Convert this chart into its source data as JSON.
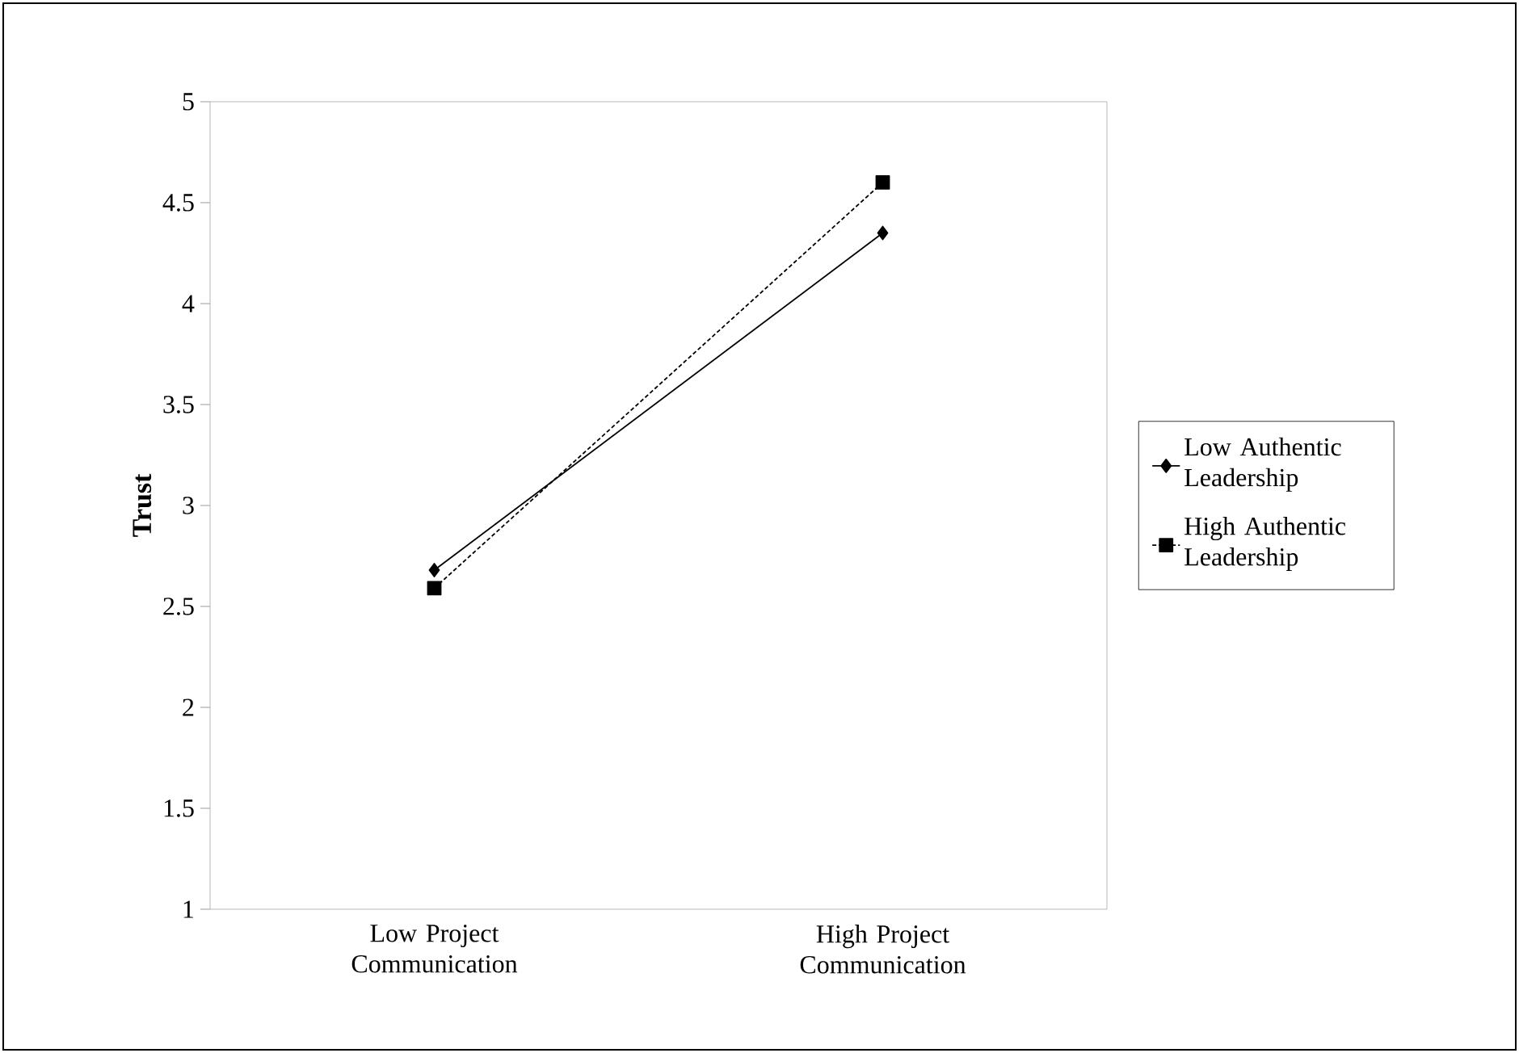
{
  "chart_data": {
    "type": "line",
    "ylabel": "Trust",
    "categories": [
      "Low Project Communication",
      "High Project Communication"
    ],
    "ylim": [
      1,
      5
    ],
    "yticks": [
      1,
      1.5,
      2,
      2.5,
      3,
      3.5,
      4,
      4.5,
      5
    ],
    "grid": false,
    "legend": "right",
    "series": [
      {
        "name": "Low Authentic Leadership",
        "color": "#000000",
        "values": [
          2.68,
          4.35
        ],
        "marker": "diamond",
        "line_style": "solid"
      },
      {
        "name": "High Authentic Leadership",
        "color": "#000000",
        "values": [
          2.59,
          4.6
        ],
        "marker": "square",
        "line_style": "dashed"
      }
    ]
  }
}
